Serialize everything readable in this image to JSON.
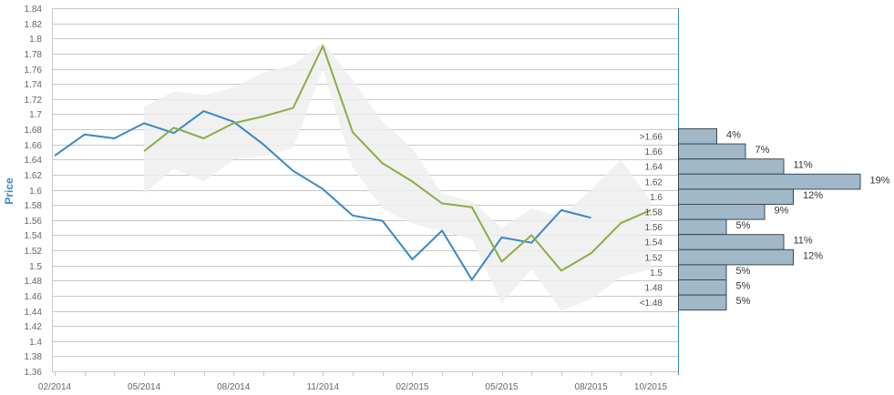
{
  "chart_data": {
    "type": "line",
    "title": "",
    "ylabel": "Price",
    "xlabel": "",
    "ylim": [
      1.36,
      1.84
    ],
    "y_ticks": [
      "1.36",
      "1.38",
      "1.4",
      "1.42",
      "1.44",
      "1.46",
      "1.48",
      "1.5",
      "1.52",
      "1.54",
      "1.56",
      "1.58",
      "1.6",
      "1.62",
      "1.64",
      "1.66",
      "1.68",
      "1.7",
      "1.72",
      "1.74",
      "1.76",
      "1.78",
      "1.8",
      "1.82",
      "1.84"
    ],
    "x_tick_labels": [
      "02/2014",
      "05/2014",
      "08/2014",
      "11/2014",
      "02/2015",
      "05/2015",
      "08/2015",
      "10/2015"
    ],
    "x_months": [
      "2014-02",
      "2014-03",
      "2014-04",
      "2014-05",
      "2014-06",
      "2014-07",
      "2014-08",
      "2014-09",
      "2014-10",
      "2014-11",
      "2014-12",
      "2015-01",
      "2015-02",
      "2015-03",
      "2015-04",
      "2015-05",
      "2015-06",
      "2015-07",
      "2015-08",
      "2015-09",
      "2015-10"
    ],
    "series": [
      {
        "color": "#3a87c8",
        "x": [
          "2014-02",
          "2014-03",
          "2014-04",
          "2014-05",
          "2014-06",
          "2014-07",
          "2014-08",
          "2014-09",
          "2014-10",
          "2014-11",
          "2014-12",
          "2015-01",
          "2015-02",
          "2015-03",
          "2015-04",
          "2015-05",
          "2015-06",
          "2015-07",
          "2015-08"
        ],
        "values": [
          1.645,
          1.673,
          1.668,
          1.688,
          1.675,
          1.704,
          1.69,
          1.66,
          1.625,
          1.601,
          1.566,
          1.559,
          1.508,
          1.546,
          1.481,
          1.537,
          1.53,
          1.573,
          1.563
        ]
      },
      {
        "color": "#8aad45",
        "x": [
          "2014-05",
          "2014-06",
          "2014-07",
          "2014-08",
          "2014-09",
          "2014-10",
          "2014-11",
          "2014-12",
          "2015-01",
          "2015-02",
          "2015-03",
          "2015-04",
          "2015-05",
          "2015-06",
          "2015-07",
          "2015-08",
          "2015-09",
          "2015-10"
        ],
        "values": [
          1.651,
          1.682,
          1.668,
          1.688,
          1.697,
          1.708,
          1.79,
          1.676,
          1.635,
          1.611,
          1.582,
          1.577,
          1.505,
          1.54,
          1.493,
          1.516,
          1.556,
          1.573
        ]
      }
    ],
    "band": {
      "color": "#eeeeee",
      "x": [
        "2014-05",
        "2014-06",
        "2014-07",
        "2014-08",
        "2014-09",
        "2014-10",
        "2014-11",
        "2014-12",
        "2015-01",
        "2015-02",
        "2015-03",
        "2015-04",
        "2015-05",
        "2015-06",
        "2015-07",
        "2015-08",
        "2015-09",
        "2015-10"
      ],
      "upper": [
        1.71,
        1.73,
        1.725,
        1.735,
        1.755,
        1.765,
        1.795,
        1.745,
        1.69,
        1.655,
        1.595,
        1.585,
        1.55,
        1.575,
        1.565,
        1.6,
        1.64,
        1.585
      ],
      "lower": [
        1.595,
        1.628,
        1.611,
        1.64,
        1.645,
        1.655,
        1.76,
        1.63,
        1.575,
        1.555,
        1.545,
        1.535,
        1.45,
        1.495,
        1.44,
        1.455,
        1.485,
        1.495
      ]
    },
    "histogram": {
      "bar_color": "#a0b8c8",
      "bins": [
        {
          "label": ">1.66",
          "pct": 4,
          "pct_label": "4%"
        },
        {
          "label": "1.66",
          "pct": 7,
          "pct_label": "7%"
        },
        {
          "label": "1.64",
          "pct": 11,
          "pct_label": "11%"
        },
        {
          "label": "1.62",
          "pct": 19,
          "pct_label": "19%"
        },
        {
          "label": "1.6",
          "pct": 12,
          "pct_label": "12%"
        },
        {
          "label": "1.58",
          "pct": 9,
          "pct_label": "9%"
        },
        {
          "label": "1.56",
          "pct": 5,
          "pct_label": "5%"
        },
        {
          "label": "1.54",
          "pct": 11,
          "pct_label": "11%"
        },
        {
          "label": "1.52",
          "pct": 12,
          "pct_label": "12%"
        },
        {
          "label": "1.5",
          "pct": 5,
          "pct_label": "5%"
        },
        {
          "label": "1.48",
          "pct": 5,
          "pct_label": "5%"
        },
        {
          "label": "<1.48",
          "pct": 5,
          "pct_label": "5%"
        }
      ]
    },
    "grid": true
  }
}
